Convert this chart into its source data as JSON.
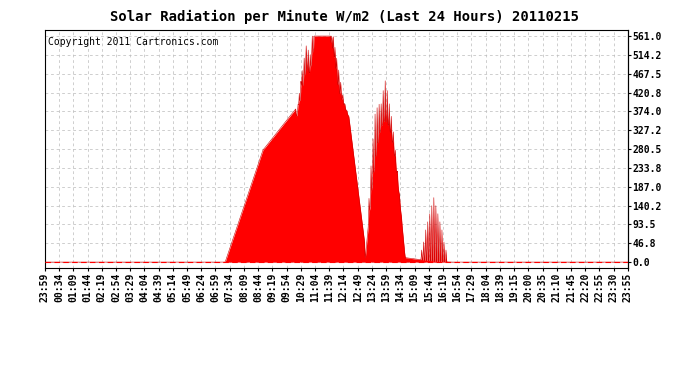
{
  "title": "Solar Radiation per Minute W/m2 (Last 24 Hours) 20110215",
  "copyright_text": "Copyright 2011 Cartronics.com",
  "y_max": 561.0,
  "y_min": 0.0,
  "y_ticks": [
    0.0,
    46.8,
    93.5,
    140.2,
    187.0,
    233.8,
    280.5,
    327.2,
    374.0,
    420.8,
    467.5,
    514.2,
    561.0
  ],
  "fill_color": "#FF0000",
  "line_color": "#CC0000",
  "dashed_line_color": "#FF0000",
  "background_color": "#FFFFFF",
  "plot_bg_color": "#FFFFFF",
  "grid_color": "#BBBBBB",
  "title_fontsize": 10,
  "copyright_fontsize": 7,
  "tick_fontsize": 7,
  "x_tick_labels": [
    "23:59",
    "00:34",
    "01:09",
    "01:44",
    "02:19",
    "02:54",
    "03:29",
    "04:04",
    "04:39",
    "05:14",
    "05:49",
    "06:24",
    "06:59",
    "07:34",
    "08:09",
    "08:44",
    "09:19",
    "09:54",
    "10:29",
    "11:04",
    "11:39",
    "12:14",
    "12:49",
    "13:24",
    "13:59",
    "14:34",
    "15:09",
    "15:44",
    "16:19",
    "16:54",
    "17:29",
    "18:04",
    "18:39",
    "19:15",
    "20:00",
    "20:35",
    "21:10",
    "21:45",
    "22:20",
    "22:55",
    "23:30",
    "23:55"
  ],
  "num_points": 1440
}
